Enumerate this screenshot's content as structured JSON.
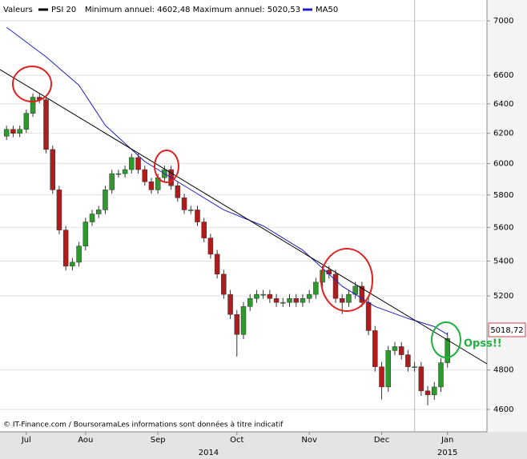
{
  "chart_data": {
    "type": "candlestick",
    "header": {
      "label": "Valeurs",
      "symbol": "PSI 20",
      "range": "Minimum annuel: 4602,48 Maximum annuel: 5020,53"
    },
    "log_scale": true,
    "ylim": [
      4490,
      7160
    ],
    "yticks": [
      4600,
      4800,
      5200,
      5400,
      5600,
      5800,
      6000,
      6200,
      6400,
      6600,
      7000
    ],
    "xlim": [
      -1,
      73
    ],
    "xticks": [
      {
        "value": 3,
        "label": "Jul"
      },
      {
        "value": 12,
        "label": "Aou"
      },
      {
        "value": 23,
        "label": "Sep"
      },
      {
        "value": 35,
        "label": "Oct"
      },
      {
        "value": 46,
        "label": "Nov"
      },
      {
        "value": 57,
        "label": "Dec"
      },
      {
        "value": 67,
        "label": "Jan"
      }
    ],
    "year_ticks": [
      {
        "value": 30.7,
        "label": "2014"
      },
      {
        "value": 67,
        "label": "2015"
      }
    ],
    "year_boundary": 62,
    "up_color": "#2e9a2e",
    "down_color": "#b01c1c",
    "series": [
      {
        "name": "PSI 20",
        "color": "#000000",
        "x": [
          0,
          1,
          2,
          3,
          4,
          5,
          6,
          7,
          8,
          9,
          10,
          11,
          12,
          13,
          14,
          15,
          16,
          17,
          18,
          19,
          20,
          21,
          22,
          23,
          24,
          25,
          26,
          27,
          28,
          29,
          30,
          31,
          32,
          33,
          34,
          35,
          36,
          37,
          38,
          39,
          40,
          41,
          42,
          43,
          44,
          45,
          46,
          47,
          48,
          49,
          50,
          51,
          52,
          53,
          54,
          55,
          56,
          57,
          58,
          59,
          60,
          61,
          62,
          63,
          64,
          65,
          66,
          67
        ],
        "open": [
          6180,
          6226,
          6199,
          6226,
          6335,
          6446,
          6429,
          6092,
          5832,
          5584,
          5370,
          5393,
          5488,
          5633,
          5682,
          5707,
          5832,
          5935,
          5935,
          5961,
          6039,
          5961,
          5883,
          5832,
          5909,
          5961,
          5858,
          5782,
          5707,
          5707,
          5633,
          5536,
          5440,
          5324,
          5209,
          5097,
          4988,
          5141,
          5186,
          5209,
          5209,
          5186,
          5164,
          5164,
          5186,
          5164,
          5186,
          5209,
          5278,
          5347,
          5324,
          5186,
          5164,
          5209,
          5255,
          5164,
          5009,
          4817,
          4713,
          4902,
          4923,
          4880,
          4817,
          4817,
          4693,
          4673,
          4713,
          4838
        ],
        "high": [
          6251,
          6251,
          6251,
          6360,
          6471,
          6471,
          6454,
          6117,
          5857,
          5609,
          5418,
          5513,
          5658,
          5707,
          5732,
          5857,
          5960,
          5960,
          5986,
          6064,
          6064,
          5986,
          5908,
          5934,
          5986,
          5986,
          5883,
          5807,
          5732,
          5732,
          5658,
          5561,
          5465,
          5349,
          5234,
          5122,
          5166,
          5211,
          5234,
          5234,
          5234,
          5211,
          5189,
          5211,
          5211,
          5211,
          5234,
          5303,
          5372,
          5372,
          5349,
          5211,
          5234,
          5280,
          5280,
          5189,
          5034,
          4842,
          4927,
          4948,
          4948,
          4905,
          4842,
          4842,
          4718,
          4738,
          4863,
          5000
        ],
        "low": [
          6155,
          6174,
          6174,
          6201,
          6310,
          6404,
          6067,
          5807,
          5559,
          5345,
          5345,
          5368,
          5463,
          5608,
          5657,
          5682,
          5807,
          5910,
          5910,
          5936,
          5936,
          5858,
          5807,
          5807,
          5884,
          5833,
          5757,
          5682,
          5682,
          5608,
          5511,
          5415,
          5299,
          5184,
          5072,
          4870,
          4963,
          5116,
          5161,
          5184,
          5161,
          5139,
          5139,
          5139,
          5139,
          5139,
          5161,
          5184,
          5253,
          5299,
          5161,
          5100,
          5139,
          5184,
          5139,
          4984,
          4792,
          4650,
          4688,
          4877,
          4855,
          4792,
          4792,
          4668,
          4620,
          4648,
          4688,
          4813
        ],
        "close": [
          6226,
          6199,
          6226,
          6335,
          6446,
          6429,
          6092,
          5832,
          5584,
          5370,
          5393,
          5488,
          5633,
          5682,
          5707,
          5832,
          5935,
          5935,
          5961,
          6039,
          5961,
          5883,
          5832,
          5909,
          5961,
          5858,
          5782,
          5707,
          5707,
          5633,
          5536,
          5440,
          5324,
          5209,
          5097,
          4988,
          5141,
          5186,
          5209,
          5209,
          5186,
          5164,
          5164,
          5186,
          5164,
          5186,
          5209,
          5278,
          5347,
          5324,
          5186,
          5164,
          5209,
          5255,
          5164,
          5009,
          4817,
          4713,
          4902,
          4923,
          4880,
          4817,
          4817,
          4693,
          4673,
          4713,
          4838,
          4966
        ]
      },
      {
        "name": "MA50",
        "color": "#2020c0",
        "x": [
          0,
          6,
          11,
          15,
          21,
          27,
          33,
          39,
          45,
          51,
          56,
          61,
          65,
          67
        ],
        "values": [
          6952,
          6733,
          6530,
          6253,
          6013,
          5858,
          5707,
          5609,
          5464,
          5255,
          5141,
          5075,
          5031,
          4988
        ]
      }
    ],
    "last_price": {
      "value": 5018.72,
      "label": "5018,72"
    },
    "annotation": "Opss!!",
    "footer": "© IT-Finance.com / BoursoramaLes informations sont données à titre indicatif"
  }
}
